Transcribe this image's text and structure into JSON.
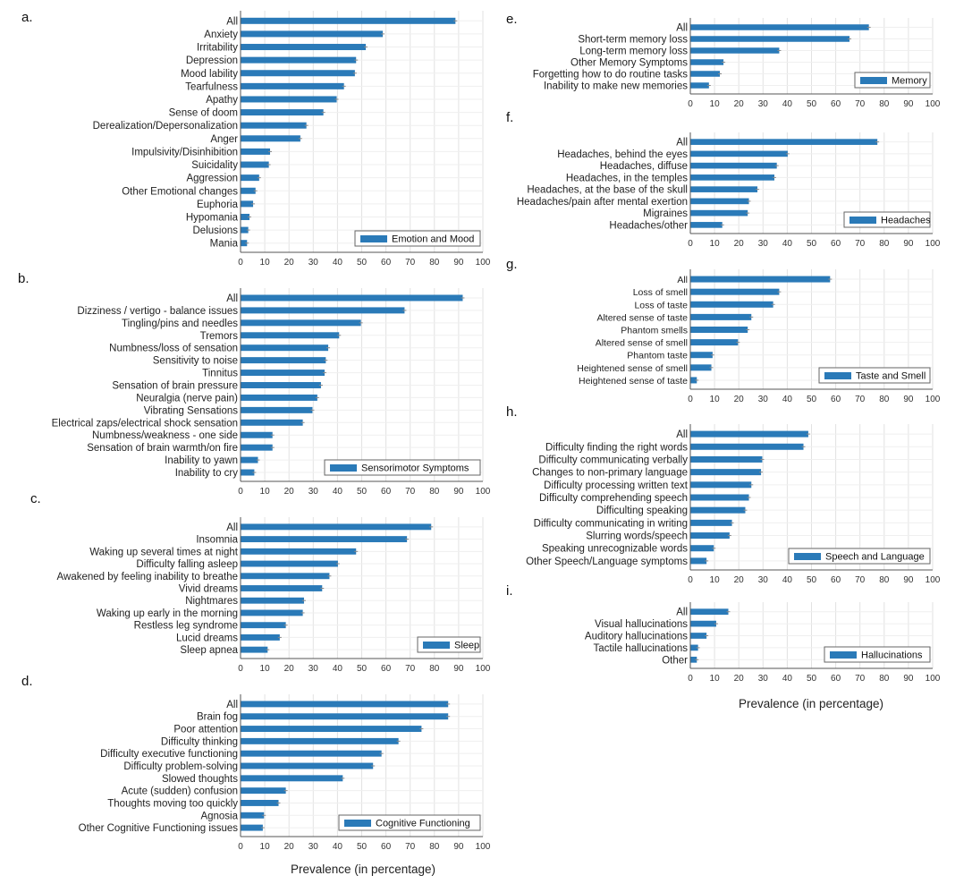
{
  "x_axis_label": "Prevalence (in percentage)",
  "colors": {
    "bar": "#2a7ab8",
    "grid": "#e2e2e2",
    "axis": "#555555",
    "error": "#888888"
  },
  "chart_data": [
    {
      "id": "a",
      "panel_label": "a.",
      "type": "bar",
      "orientation": "horizontal",
      "legend": "Emotion and Mood",
      "xlim": [
        0,
        100
      ],
      "ticks": [
        "0",
        "10",
        "20",
        "30",
        "40",
        "50",
        "60",
        "70",
        "80",
        "90",
        "100"
      ],
      "categories": [
        "All",
        "Anxiety",
        "Irritability",
        "Depression",
        "Mood lability",
        "Tearfulness",
        "Apathy",
        "Sense of doom",
        "Derealization/Depersonalization",
        "Anger",
        "Impulsivity/Disinhibition",
        "Suicidality",
        "Aggression",
        "Other Emotional changes",
        "Euphoria",
        "Hypomania",
        "Delusions",
        "Mania"
      ],
      "values": [
        88.5,
        58.5,
        51.5,
        47.5,
        47,
        42.5,
        39.5,
        34,
        27,
        24.5,
        12,
        11.5,
        7.5,
        6,
        5,
        3.5,
        3,
        2.5
      ]
    },
    {
      "id": "b",
      "panel_label": "b.",
      "type": "bar",
      "orientation": "horizontal",
      "legend": "Sensorimotor Symptoms",
      "xlim": [
        0,
        100
      ],
      "ticks": [
        "0",
        "10",
        "20",
        "30",
        "40",
        "50",
        "60",
        "70",
        "80",
        "90",
        "100"
      ],
      "categories": [
        "All",
        "Dizziness / vertigo - balance issues",
        "Tingling/pins and needles",
        "Tremors",
        "Numbness/loss of sensation",
        "Sensitivity to noise",
        "Tinnitus",
        "Sensation of brain pressure",
        "Neuralgia (nerve pain)",
        "Vibrating Sensations",
        "Electrical zaps/electrical shock sensation",
        "Numbness/weakness - one side",
        "Sensation of brain warmth/on fire",
        "Inability to yawn",
        "Inability to cry"
      ],
      "values": [
        91.5,
        67.5,
        49.5,
        40.5,
        36,
        35,
        34.5,
        33,
        31.5,
        29.5,
        25.5,
        13,
        13,
        7,
        5.5
      ]
    },
    {
      "id": "c",
      "panel_label": "c.",
      "type": "bar",
      "orientation": "horizontal",
      "legend": "Sleep",
      "xlim": [
        0,
        100
      ],
      "ticks": [
        "0",
        "10",
        "20",
        "30",
        "40",
        "50",
        "60",
        "70",
        "80",
        "90",
        "100"
      ],
      "categories": [
        "All",
        "Insomnia",
        "Waking up several times at night",
        "Difficulty falling asleep",
        "Awakened by feeling inability to breathe",
        "Vivid dreams",
        "Nightmares",
        "Waking up early in the morning",
        "Restless leg syndrome",
        "Lucid dreams",
        "Sleep apnea"
      ],
      "values": [
        78.5,
        68.5,
        47.5,
        40,
        36.5,
        33.5,
        26,
        25.5,
        18.5,
        16,
        11
      ]
    },
    {
      "id": "d",
      "panel_label": "d.",
      "type": "bar",
      "orientation": "horizontal",
      "legend": "Cognitive Functioning",
      "xlim": [
        0,
        100
      ],
      "ticks": [
        "0",
        "10",
        "20",
        "30",
        "40",
        "50",
        "60",
        "70",
        "80",
        "90",
        "100"
      ],
      "categories": [
        "All",
        "Brain fog",
        "Poor attention",
        "Difficulty thinking",
        "Difficulty executive functioning",
        "Difficulty problem-solving",
        "Slowed thoughts",
        "Acute (sudden) confusion",
        "Thoughts moving too quickly",
        "Agnosia",
        "Other Cognitive Functioning issues"
      ],
      "values": [
        85.5,
        85.5,
        74.5,
        65,
        58,
        54.5,
        42,
        18.5,
        15.5,
        9.5,
        9
      ]
    },
    {
      "id": "e",
      "panel_label": "e.",
      "type": "bar",
      "orientation": "horizontal",
      "legend": "Memory",
      "xlim": [
        0,
        100
      ],
      "ticks": [
        "0",
        "10",
        "20",
        "30",
        "40",
        "50",
        "60",
        "70",
        "80",
        "90",
        "100"
      ],
      "categories": [
        "All",
        "Short-term memory loss",
        "Long-term memory loss",
        "Other Memory Symptoms",
        "Forgetting how to do routine tasks",
        "Inability to make new memories"
      ],
      "values": [
        73.5,
        65.5,
        36.5,
        13.5,
        12,
        7.5
      ]
    },
    {
      "id": "f",
      "panel_label": "f.",
      "type": "bar",
      "orientation": "horizontal",
      "legend": "Headaches",
      "xlim": [
        0,
        100
      ],
      "ticks": [
        "0",
        "10",
        "20",
        "30",
        "40",
        "50",
        "60",
        "70",
        "80",
        "90",
        "100"
      ],
      "categories": [
        "All",
        "Headaches, behind the eyes",
        "Headaches, diffuse",
        "Headaches, in the temples",
        "Headaches, at the base of the skull",
        "Headaches/pain after mental exertion",
        "Migraines",
        "Headaches/other"
      ],
      "values": [
        77,
        40,
        35.5,
        34.5,
        27.5,
        24,
        23.5,
        13
      ]
    },
    {
      "id": "g",
      "panel_label": "g.",
      "type": "bar",
      "orientation": "horizontal",
      "legend": "Taste and Smell",
      "xlim": [
        0,
        100
      ],
      "ticks": [
        "0",
        "10",
        "20",
        "30",
        "40",
        "50",
        "60",
        "70",
        "80",
        "90",
        "100"
      ],
      "categories": [
        "All",
        "Loss of smell",
        "Loss of taste",
        "Altered sense of taste",
        "Phantom smells",
        "Altered sense of smell",
        "Phantom taste",
        "Heightened sense of smell",
        "Heightened sense of taste"
      ],
      "values": [
        57.5,
        36.5,
        34,
        25,
        23.5,
        19.5,
        9,
        8.5,
        2.5
      ]
    },
    {
      "id": "h",
      "panel_label": "h.",
      "type": "bar",
      "orientation": "horizontal",
      "legend": "Speech and Language",
      "xlim": [
        0,
        100
      ],
      "ticks": [
        "0",
        "10",
        "20",
        "30",
        "40",
        "50",
        "60",
        "70",
        "80",
        "90",
        "100"
      ],
      "categories": [
        "All",
        "Difficulty finding the right words",
        "Difficulty communicating verbally",
        "Changes to non-primary language",
        "Difficulty processing written text",
        "Difficulty comprehending speech",
        "Difficulting speaking",
        "Difficulty communicating in writing",
        "Slurring words/speech",
        "Speaking unrecognizable words",
        "Other Speech/Language symptoms"
      ],
      "values": [
        48.5,
        46.5,
        29.5,
        29,
        25,
        24,
        22.5,
        17,
        16,
        9.5,
        6.5
      ]
    },
    {
      "id": "i",
      "panel_label": "i.",
      "type": "bar",
      "orientation": "horizontal",
      "legend": "Hallucinations",
      "xlim": [
        0,
        100
      ],
      "ticks": [
        "0",
        "10",
        "20",
        "30",
        "40",
        "50",
        "60",
        "70",
        "80",
        "90",
        "100"
      ],
      "categories": [
        "All",
        "Visual  hallucinations",
        "Auditory hallucinations",
        "Tactile hallucinations",
        "Other"
      ],
      "values": [
        15.5,
        10.5,
        6.5,
        3,
        2.5
      ]
    }
  ]
}
